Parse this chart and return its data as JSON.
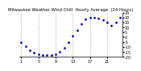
{
  "title": "Milwaukee Weather Wind Chill  Hourly Average  (24 Hours)",
  "hours": [
    1,
    2,
    3,
    4,
    5,
    6,
    7,
    8,
    9,
    10,
    11,
    12,
    13,
    14,
    15,
    16,
    17,
    18,
    19,
    20,
    21,
    22,
    23,
    24
  ],
  "wind_chill": [
    -5,
    -9,
    -13,
    -16,
    -17,
    -18,
    -18,
    -18,
    -17,
    -15,
    -11,
    -5,
    1,
    7,
    13,
    18,
    20,
    20,
    19,
    17,
    15,
    12,
    15,
    20
  ],
  "line_color": "#0000cc",
  "marker": ".",
  "markersize": 2.0,
  "linewidth": 0,
  "grid_color": "#aaaaaa",
  "grid_linestyle": "--",
  "background_color": "#ffffff",
  "ylim": [
    -20,
    25
  ],
  "xlim": [
    0.5,
    24.5
  ],
  "yticks": [
    -20,
    -15,
    -10,
    -5,
    0,
    5,
    10,
    15,
    20,
    25
  ],
  "ytick_labels": [
    "-20",
    "-15",
    "-10",
    "-5",
    "0",
    "5",
    "10",
    "15",
    "20",
    "25"
  ],
  "xtick_positions": [
    1,
    5,
    9,
    13,
    17,
    21
  ],
  "xtick_labels": [
    "1",
    "5",
    "9",
    "13",
    "17",
    "21"
  ],
  "grid_positions": [
    1,
    5,
    9,
    13,
    17,
    21,
    25
  ],
  "tick_fontsize": 3.5,
  "title_fontsize": 3.8
}
